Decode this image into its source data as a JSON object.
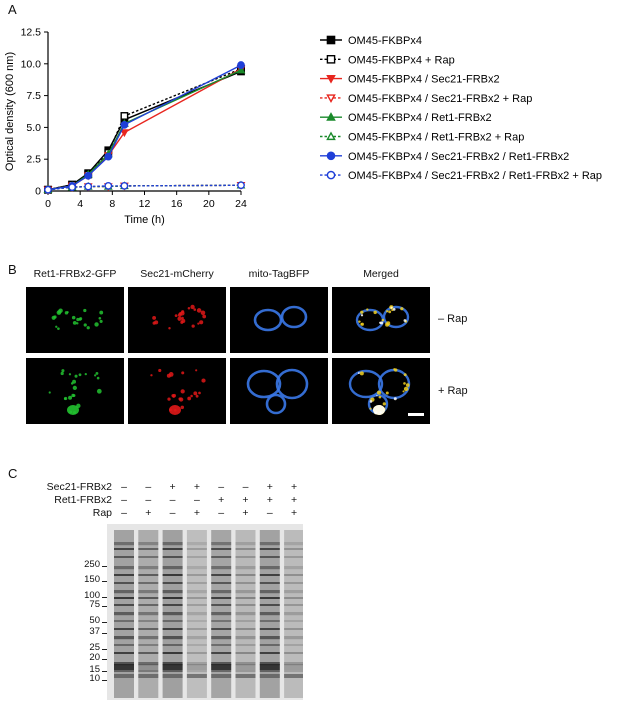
{
  "panels": {
    "a": "A",
    "b": "B",
    "c": "C"
  },
  "chart_data": {
    "type": "line",
    "xlabel": "Time (h)",
    "ylabel": "Optical density (600 nm)",
    "xlim": [
      0,
      24
    ],
    "ylim": [
      0,
      12.5
    ],
    "xticks": [
      0,
      4,
      8,
      12,
      16,
      20,
      24
    ],
    "yticks": [
      0,
      2.5,
      5.0,
      7.5,
      10.0,
      12.5
    ],
    "ytick_labels": [
      "0",
      "2.5",
      "5.0",
      "7.5",
      "10.0",
      "12.5"
    ],
    "x": [
      0,
      3,
      5,
      7.5,
      9.5,
      24
    ],
    "legend_position": "right",
    "series": [
      {
        "name": "OM45-FKBPx4",
        "values": [
          0.1,
          0.5,
          1.4,
          3.2,
          5.6,
          9.4
        ],
        "color": "#000000",
        "marker": "square",
        "filled": true,
        "dashed": false
      },
      {
        "name": "OM45-FKBPx4 + Rap",
        "values": [
          0.1,
          0.5,
          1.3,
          3.0,
          5.9,
          9.6
        ],
        "color": "#000000",
        "marker": "square",
        "filled": false,
        "dashed": true
      },
      {
        "name": "OM45-FKBPx4 / Sec21-FRBx2",
        "values": [
          0.1,
          0.4,
          1.2,
          2.8,
          4.6,
          9.6
        ],
        "color": "#e8261f",
        "marker": "triangle-down",
        "filled": true,
        "dashed": false
      },
      {
        "name": "OM45-FKBPx4 / Sec21-FRBx2 + Rap",
        "values": [
          0.1,
          0.3,
          0.35,
          0.35,
          0.4,
          0.45
        ],
        "color": "#e8261f",
        "marker": "triangle-down",
        "filled": false,
        "dashed": true
      },
      {
        "name": "OM45-FKBPx4 / Ret1-FRBx2",
        "values": [
          0.1,
          0.4,
          1.3,
          2.9,
          5.3,
          9.5
        ],
        "color": "#1a8a2b",
        "marker": "triangle-up",
        "filled": true,
        "dashed": false
      },
      {
        "name": "OM45-FKBPx4 / Ret1-FRBx2 + Rap",
        "values": [
          0.1,
          0.3,
          0.35,
          0.35,
          0.4,
          0.45
        ],
        "color": "#1a8a2b",
        "marker": "triangle-up",
        "filled": false,
        "dashed": true
      },
      {
        "name": "OM45-FKBPx4 / Sec21-FRBx2 / Ret1-FRBx2",
        "values": [
          0.1,
          0.4,
          1.2,
          2.7,
          5.2,
          9.9
        ],
        "color": "#1f3fd8",
        "marker": "circle",
        "filled": true,
        "dashed": false
      },
      {
        "name": "OM45-FKBPx4 / Sec21-FRBx2 / Ret1-FRBx2 + Rap",
        "values": [
          0.1,
          0.3,
          0.35,
          0.4,
          0.4,
          0.45
        ],
        "color": "#1f3fd8",
        "marker": "circle",
        "filled": false,
        "dashed": true
      }
    ]
  },
  "microscopy": {
    "columns": [
      "Ret1-FRBx2-GFP",
      "Sec21-mCherry",
      "mito-TagBFP",
      "Merged"
    ],
    "rows": [
      "– Rap",
      "+ Rap"
    ],
    "channel_colors": {
      "gfp": "#22c230",
      "mcherry": "#e01818",
      "bfp": "#3a78e8"
    }
  },
  "gel": {
    "row_labels": [
      "Sec21-FRBx2",
      "Ret1-FRBx2",
      "Rap"
    ],
    "lanes": [
      {
        "sec21": "–",
        "ret1": "–",
        "rap": "–"
      },
      {
        "sec21": "–",
        "ret1": "–",
        "rap": "+"
      },
      {
        "sec21": "+",
        "ret1": "–",
        "rap": "–"
      },
      {
        "sec21": "+",
        "ret1": "–",
        "rap": "+"
      },
      {
        "sec21": "–",
        "ret1": "+",
        "rap": "–"
      },
      {
        "sec21": "–",
        "ret1": "+",
        "rap": "+"
      },
      {
        "sec21": "+",
        "ret1": "+",
        "rap": "–"
      },
      {
        "sec21": "+",
        "ret1": "+",
        "rap": "+"
      }
    ],
    "markers": [
      "250",
      "150",
      "100",
      "75",
      "50",
      "37",
      "25",
      "20",
      "15",
      "10"
    ],
    "lane_intensity": [
      0.8,
      0.6,
      0.85,
      0.25,
      0.75,
      0.35,
      0.8,
      0.3
    ]
  }
}
